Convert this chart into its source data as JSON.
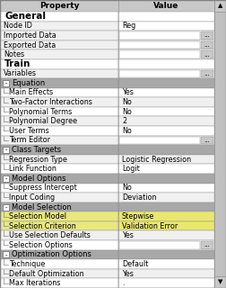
{
  "title_row": [
    "Property",
    "Value"
  ],
  "col_split": 0.555,
  "rows": [
    {
      "label": "General",
      "value": "",
      "type": "section_header"
    },
    {
      "label": "Node ID",
      "value": "Reg",
      "type": "normal"
    },
    {
      "label": "Imported Data",
      "value": "",
      "type": "dots"
    },
    {
      "label": "Exported Data",
      "value": "",
      "type": "dots"
    },
    {
      "label": "Notes",
      "value": "",
      "type": "dots"
    },
    {
      "label": "Train",
      "value": "",
      "type": "section_header"
    },
    {
      "label": "Variables",
      "value": "",
      "type": "dots"
    },
    {
      "label": "Equation",
      "value": "",
      "type": "group_header"
    },
    {
      "label": "Main Effects",
      "value": "Yes",
      "type": "child"
    },
    {
      "label": "Two-Factor Interactions",
      "value": "No",
      "type": "child"
    },
    {
      "label": "Polynomial Terms",
      "value": "No",
      "type": "child"
    },
    {
      "label": "Polynomial Degree",
      "value": "2",
      "type": "child"
    },
    {
      "label": "User Terms",
      "value": "No",
      "type": "child"
    },
    {
      "label": "Term Editor",
      "value": "",
      "type": "child_dots"
    },
    {
      "label": "Class Targets",
      "value": "",
      "type": "group_header"
    },
    {
      "label": "Regression Type",
      "value": "Logistic Regression",
      "type": "child"
    },
    {
      "label": "Link Function",
      "value": "Logit",
      "type": "child"
    },
    {
      "label": "Model Options",
      "value": "",
      "type": "group_header"
    },
    {
      "label": "Suppress Intercept",
      "value": "No",
      "type": "child"
    },
    {
      "label": "Input Coding",
      "value": "Deviation",
      "type": "child"
    },
    {
      "label": "Model Selection",
      "value": "",
      "type": "group_header"
    },
    {
      "label": "Selection Model",
      "value": "Stepwise",
      "type": "highlight"
    },
    {
      "label": "Selection Criterion",
      "value": "Validation Error",
      "type": "highlight"
    },
    {
      "label": "Use Selection Defaults",
      "value": "Yes",
      "type": "child"
    },
    {
      "label": "Selection Options",
      "value": "",
      "type": "child_dots"
    },
    {
      "label": "Optimization Options",
      "value": "",
      "type": "group_header"
    },
    {
      "label": "Technique",
      "value": "Default",
      "type": "child"
    },
    {
      "label": "Default Optimization",
      "value": "Yes",
      "type": "child"
    },
    {
      "label": "Max Iterations",
      "value": ".",
      "type": "child"
    }
  ],
  "colors": {
    "header_bg": "#c8c8c8",
    "section_header_bg": "#ffffff",
    "section_header_text": "#000000",
    "group_header_bg": "#a8a8a8",
    "group_header_text": "#000000",
    "normal_bg": "#e8e8e8",
    "child_bg": "#f0f0f0",
    "child_bg_white": "#ffffff",
    "highlight_bg": "#e8e880",
    "highlight_val_bg": "#e8e870",
    "border": "#909090",
    "text": "#000000",
    "scrollbar_bg": "#c0c0c0",
    "scrollbar_btn": "#c8c8c8"
  },
  "figsize": [
    2.52,
    3.2
  ],
  "dpi": 100
}
